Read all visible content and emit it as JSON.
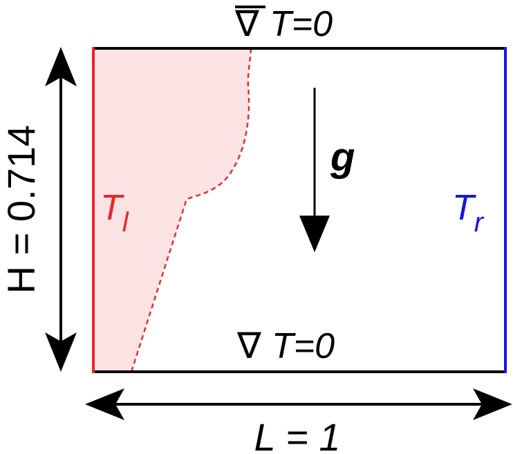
{
  "labels": {
    "top_bc": "T=0",
    "bottom_bc": "T=0",
    "nabla": "∇",
    "gravity": "g",
    "left_temp_base": "T",
    "left_temp_sub": "l",
    "right_temp_base": "T",
    "right_temp_sub": "r",
    "height": "H = 0.714",
    "length": "L = 1"
  },
  "colors": {
    "hot_wall": "#e8262b",
    "cold_wall": "#1414e6",
    "melt_fill": "#fbe3e3",
    "interface": "#e8262b",
    "line": "#000000"
  }
}
